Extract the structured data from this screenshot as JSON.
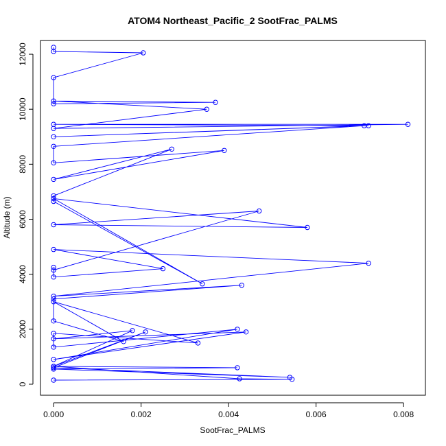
{
  "chart_data": {
    "type": "line",
    "title": "ATOM4 Northeast_Pacific_2 SootFrac_PALMS",
    "xlabel": "SootFrac_PALMS",
    "ylabel": "Altitude (m)",
    "xlim": [
      -0.0003,
      0.0085
    ],
    "ylim": [
      -400,
      12500
    ],
    "xticks": [
      0,
      0.002,
      0.004,
      0.006,
      0.008
    ],
    "xtick_labels": [
      "0.000",
      "0.002",
      "0.004",
      "0.006",
      "0.008"
    ],
    "yticks": [
      0,
      2000,
      4000,
      6000,
      8000,
      10000,
      12000
    ],
    "ytick_labels": [
      "0",
      "2000",
      "4000",
      "6000",
      "8000",
      "10000",
      "12000"
    ],
    "grid": false,
    "legend": "none",
    "series": [
      {
        "color": "#0000ff",
        "marker": "open-circle",
        "x": [
          0,
          0.00545,
          0.00425,
          0,
          0.0042,
          0,
          0.0054,
          0,
          0.0021,
          0,
          0.0018,
          0,
          0.0044,
          0,
          0.0042,
          0,
          0,
          0.0033,
          0,
          0.0016,
          0,
          0,
          0.0043,
          0,
          0.0072,
          0,
          0.0025,
          0,
          0,
          0,
          0.0047,
          0,
          0.0058,
          0,
          0.0034,
          0,
          0,
          0.0027,
          0,
          0.0039,
          0,
          0,
          0.0071,
          0,
          0.0072,
          0,
          0.0081,
          0,
          0.0035,
          0,
          0.0037,
          0,
          0,
          0.00205,
          0,
          0
        ],
        "y": [
          150,
          180,
          200,
          650,
          600,
          550,
          250,
          600,
          1900,
          650,
          1950,
          1650,
          1900,
          900,
          2000,
          1350,
          1850,
          1500,
          3000,
          1550,
          2300,
          3100,
          3600,
          3200,
          4400,
          4900,
          4200,
          3900,
          4250,
          4150,
          6300,
          5800,
          5700,
          6750,
          3650,
          6650,
          6850,
          8550,
          7450,
          8500,
          8050,
          8650,
          9400,
          9000,
          9400,
          9450,
          9450,
          9300,
          10000,
          10300,
          10250,
          10200,
          11150,
          12050,
          12100,
          12250
        ]
      }
    ]
  }
}
